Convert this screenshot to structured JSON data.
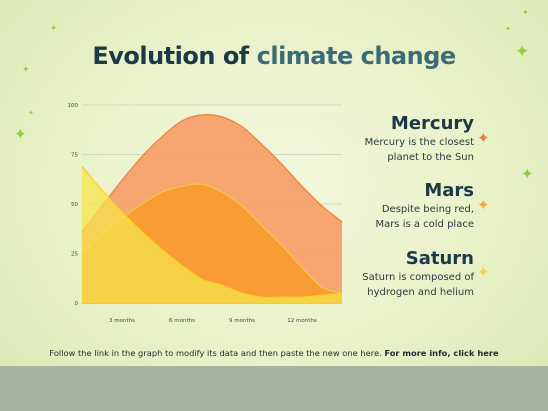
{
  "title": {
    "part1": "Evolution of",
    "part2": "climate change"
  },
  "chart_data": {
    "type": "area",
    "x": [
      0,
      1,
      2,
      3,
      4,
      5,
      6,
      7,
      8,
      9,
      10,
      11,
      12,
      13
    ],
    "xtick_labels": [
      {
        "x": 2,
        "label": "3 months"
      },
      {
        "x": 5,
        "label": "6 months"
      },
      {
        "x": 8,
        "label": "9 months"
      },
      {
        "x": 11,
        "label": "12 months"
      }
    ],
    "yticks": [
      0,
      25,
      50,
      75,
      100
    ],
    "ylim": [
      0,
      100
    ],
    "xlim": [
      0,
      13
    ],
    "grid": true,
    "series": [
      {
        "color": "#f5a06a",
        "line_color": "#e8833f",
        "values": [
          36,
          49,
          62,
          74,
          84,
          92,
          95,
          94,
          89,
          80,
          70,
          59,
          49,
          41
        ]
      },
      {
        "color": "#fb9b2e",
        "line_color": "#f7c840",
        "values": [
          25,
          35,
          43,
          50,
          56,
          59,
          60,
          56,
          49,
          39,
          29,
          18,
          8,
          5
        ]
      },
      {
        "color": "#f6e34c",
        "line_color": "#f6d21e",
        "values": [
          69,
          57,
          46,
          36,
          27,
          19,
          12,
          9,
          5,
          3,
          3,
          3,
          4,
          5
        ]
      }
    ]
  },
  "legend": [
    {
      "name": "Mercury",
      "desc1": "Mercury is the closest",
      "desc2": "planet to the Sun",
      "star_color": "#f07a3a"
    },
    {
      "name": "Mars",
      "desc1": "Despite being red,",
      "desc2": "Mars is a cold place",
      "star_color": "#f4a93a"
    },
    {
      "name": "Saturn",
      "desc1": "Saturn is composed of",
      "desc2": "hydrogen and helium",
      "star_color": "#f7d83a"
    }
  ],
  "footer": {
    "text": "Follow the link in the graph to modify its data and then paste the new one here. ",
    "link": "For more info, click here"
  },
  "colors": {
    "deco_star": "#8ccf3f",
    "title_dark": "#1b3a47",
    "title_accent": "#3b6b74",
    "bottom_band": "#a8b4a0"
  },
  "icons": {
    "legend_marker": "four-point-star-icon",
    "decoration": "sparkle-icon"
  }
}
